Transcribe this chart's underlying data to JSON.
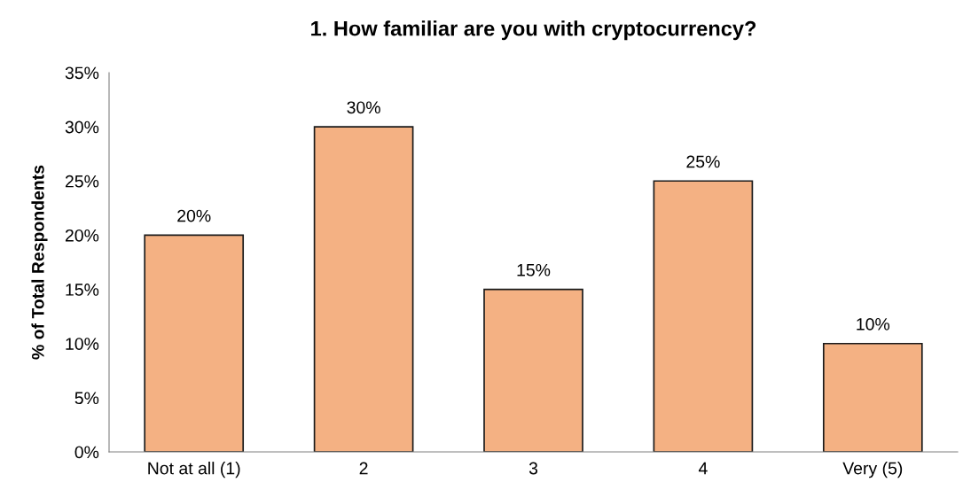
{
  "chart_data": {
    "type": "bar",
    "title": "1. How familiar are you with cryptocurrency?",
    "ylabel": "% of Total Respondents",
    "categories": [
      "Not at all (1)",
      "2",
      "3",
      "4",
      "Very (5)"
    ],
    "values": [
      20,
      30,
      15,
      25,
      10
    ],
    "value_labels": [
      "20%",
      "30%",
      "15%",
      "25%",
      "10%"
    ],
    "color": "#f4b183",
    "ylim": [
      0,
      35
    ],
    "yticks": [
      {
        "value": 0,
        "label": "0%"
      },
      {
        "value": 5,
        "label": "5%"
      },
      {
        "value": 10,
        "label": "10%"
      },
      {
        "value": 15,
        "label": "15%"
      },
      {
        "value": 20,
        "label": "20%"
      },
      {
        "value": 25,
        "label": "25%"
      },
      {
        "value": 30,
        "label": "30%"
      },
      {
        "value": 35,
        "label": "35%"
      }
    ],
    "grid": false,
    "legend": false
  }
}
